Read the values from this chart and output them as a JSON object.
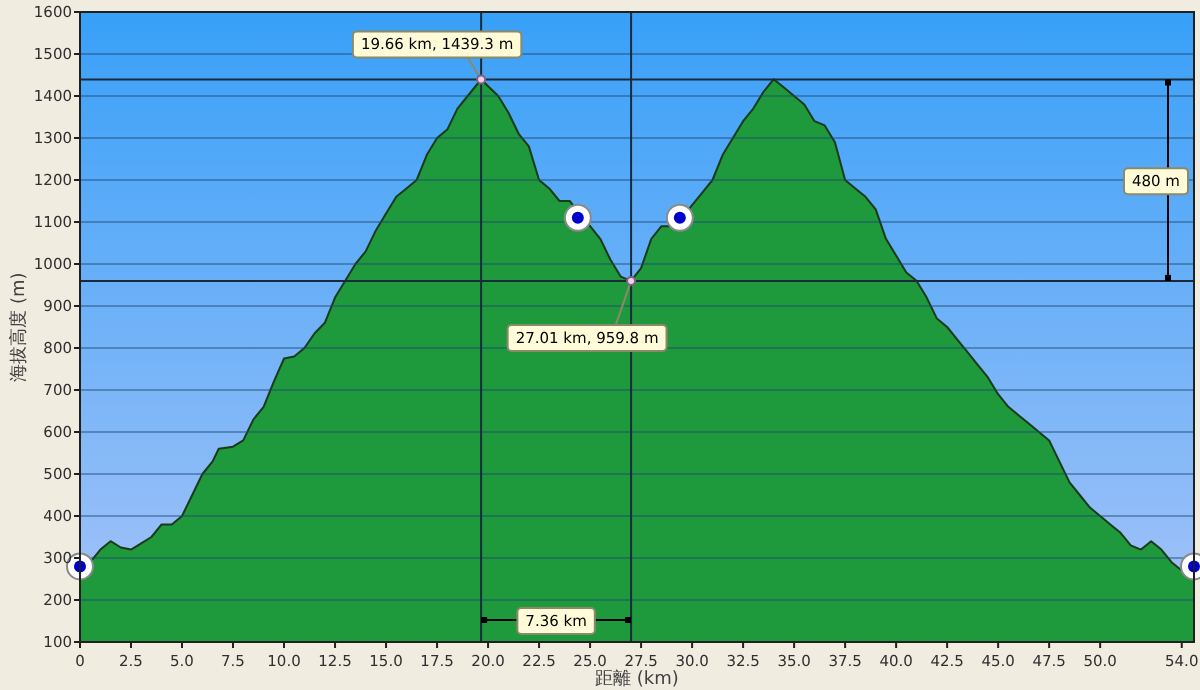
{
  "chart_data": {
    "type": "area",
    "xlabel": "距離 (km)",
    "ylabel": "海拔高度 (m)",
    "xlim": [
      0,
      54.6
    ],
    "xticks": [
      0,
      {
        "value": 2.5,
        "label": "2.5"
      },
      {
        "value": 5,
        "label": "5.0"
      },
      {
        "value": 7.5,
        "label": "7.5"
      },
      {
        "value": 10,
        "label": "10.0"
      },
      {
        "value": 12.5,
        "label": "12.5"
      },
      {
        "value": 15,
        "label": "15.0"
      },
      {
        "value": 17.5,
        "label": "17.5"
      },
      {
        "value": 20,
        "label": "20.0"
      },
      {
        "value": 22.5,
        "label": "22.5"
      },
      {
        "value": 25,
        "label": "25.0"
      },
      {
        "value": 27.5,
        "label": "27.5"
      },
      {
        "value": 30,
        "label": "30.0"
      },
      {
        "value": 32.5,
        "label": "32.5"
      },
      {
        "value": 35,
        "label": "35.0"
      },
      {
        "value": 37.5,
        "label": "37.5"
      },
      {
        "value": 40,
        "label": "40.0"
      },
      {
        "value": 42.5,
        "label": "42.5"
      },
      {
        "value": 45,
        "label": "45.0"
      },
      {
        "value": 47.5,
        "label": "47.5"
      },
      {
        "value": 50,
        "label": "50.0"
      },
      {
        "value": 54,
        "label": "54.0"
      }
    ],
    "ylim": [
      100,
      1600
    ],
    "yticks": [
      100,
      200,
      300,
      400,
      500,
      600,
      700,
      800,
      900,
      1000,
      1100,
      1200,
      1300,
      1400,
      1500,
      1600
    ],
    "grid": "y",
    "series": [
      {
        "color": "#1e9a3c",
        "x": [
          0,
          0.5,
          1,
          1.5,
          2,
          2.5,
          3,
          3.5,
          4,
          4.5,
          5,
          5.5,
          6,
          6.5,
          6.8,
          7.5,
          8,
          8.5,
          9,
          9.5,
          10,
          10.5,
          11,
          11.5,
          12,
          12.5,
          13,
          13.5,
          14,
          14.5,
          15,
          15.5,
          16,
          16.5,
          17,
          17.5,
          18,
          18.5,
          19,
          19.66,
          20.5,
          21,
          21.5,
          22,
          22.5,
          23,
          23.5,
          24,
          24.5,
          25,
          25.5,
          26,
          26.5,
          27.01,
          27.5,
          28,
          28.5,
          29,
          29.5,
          30,
          30.5,
          31,
          31.5,
          32,
          32.5,
          33,
          33.5,
          34,
          34.5,
          35,
          35.5,
          36,
          36.5,
          37,
          37.5,
          38,
          38.5,
          39,
          39.5,
          40,
          40.5,
          41,
          41.5,
          42,
          42.5,
          43,
          43.5,
          44,
          44.5,
          45,
          45.5,
          46,
          46.5,
          47,
          47.5,
          48,
          48.5,
          49,
          49.5,
          50,
          50.5,
          51,
          51.5,
          52,
          52.5,
          53,
          53.5,
          54,
          54.6
        ],
        "values": [
          255,
          290,
          320,
          340,
          325,
          320,
          335,
          350,
          380,
          380,
          400,
          450,
          500,
          530,
          560,
          565,
          580,
          630,
          660,
          720,
          775,
          780,
          800,
          835,
          860,
          920,
          960,
          1000,
          1030,
          1080,
          1120,
          1160,
          1180,
          1200,
          1260,
          1300,
          1320,
          1370,
          1400,
          1439.3,
          1400,
          1360,
          1310,
          1280,
          1200,
          1180,
          1150,
          1150,
          1120,
          1090,
          1060,
          1010,
          970,
          959.8,
          990,
          1060,
          1090,
          1090,
          1110,
          1140,
          1170,
          1200,
          1260,
          1300,
          1340,
          1370,
          1410,
          1440,
          1420,
          1400,
          1380,
          1340,
          1330,
          1290,
          1200,
          1180,
          1160,
          1130,
          1060,
          1020,
          980,
          960,
          920,
          870,
          850,
          820,
          790,
          760,
          730,
          690,
          660,
          640,
          620,
          600,
          580,
          530,
          480,
          450,
          420,
          400,
          380,
          360,
          330,
          320,
          340,
          320,
          290,
          270,
          260
        ]
      },
      {
        "type": "scatter",
        "color": "#0000cc",
        "marker": "circle",
        "x": [
          0,
          24.4,
          29.4,
          54.6
        ],
        "values": [
          280,
          1110,
          1110,
          280
        ]
      }
    ],
    "ref_lines": [
      {
        "axis": "x",
        "value": 19.66,
        "color": "#1a2a3a"
      },
      {
        "axis": "x",
        "value": 27.01,
        "color": "#1a2a3a"
      },
      {
        "axis": "y",
        "value": 1439.3,
        "color": "#1a2a3a"
      },
      {
        "axis": "y",
        "value": 959.8,
        "color": "#1a2a3a"
      }
    ],
    "annotations": [
      {
        "text": "19.66 km, 1439.3 m",
        "x": 19.66,
        "y": 1439.3
      },
      {
        "text": "27.01 km, 959.8 m",
        "x": 27.01,
        "y": 959.8
      },
      "7.36 km",
      "480 m"
    ]
  }
}
